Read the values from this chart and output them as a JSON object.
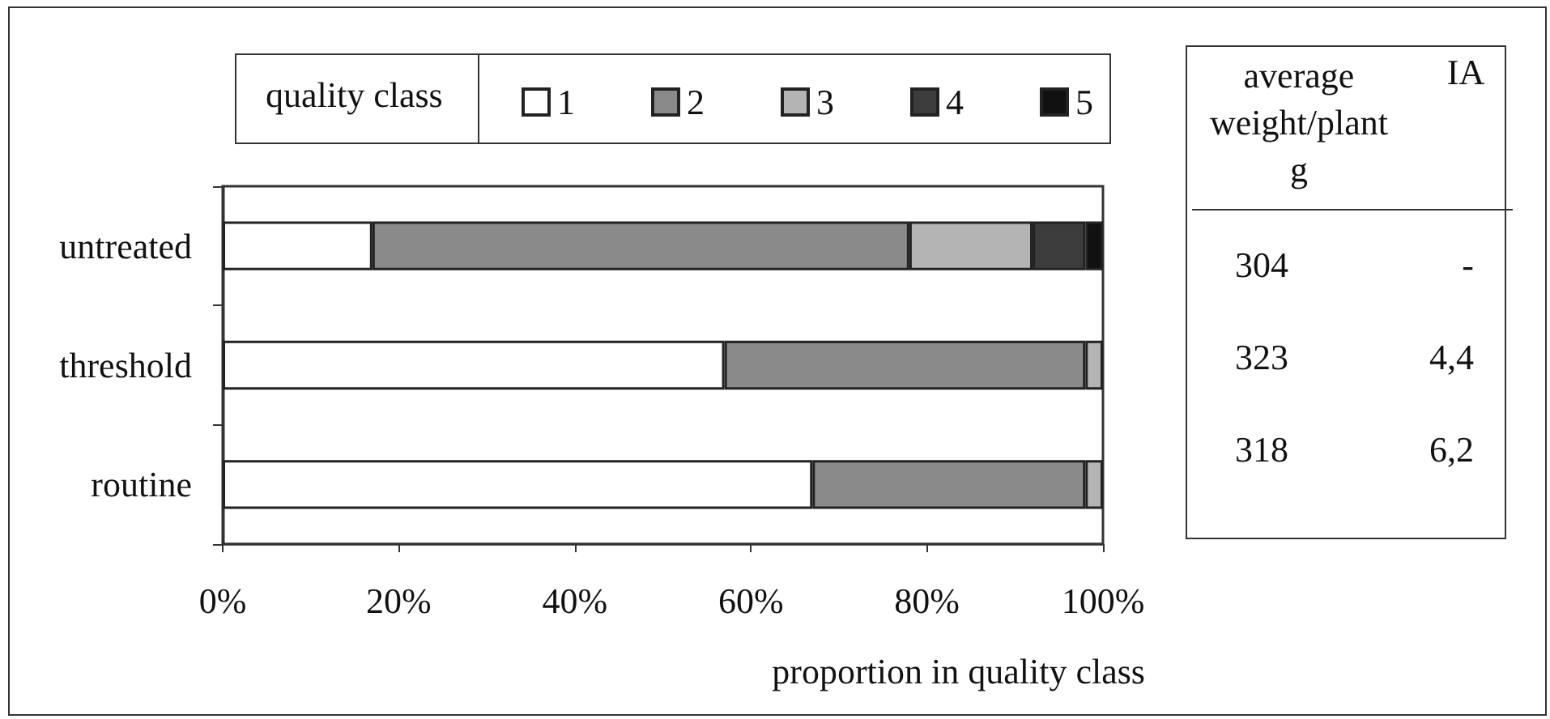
{
  "chart_data": {
    "type": "bar",
    "orientation": "horizontal",
    "stacked": true,
    "categories": [
      "untreated",
      "threshold",
      "routine"
    ],
    "series": [
      {
        "name": "1",
        "color": "#ffffff",
        "values": [
          17,
          57,
          67
        ]
      },
      {
        "name": "2",
        "color": "#8a8a8a",
        "values": [
          61,
          41,
          31
        ]
      },
      {
        "name": "3",
        "color": "#b4b4b4",
        "values": [
          14,
          2,
          2
        ]
      },
      {
        "name": "4",
        "color": "#3c3c3c",
        "values": [
          6,
          null,
          null
        ]
      },
      {
        "name": "5",
        "color": "#111111",
        "values": [
          2,
          null,
          null
        ]
      }
    ],
    "xlim": [
      0,
      100
    ],
    "xticks": [
      {
        "value": 0,
        "label": "0%"
      },
      {
        "value": 20,
        "label": "20%"
      },
      {
        "value": 40,
        "label": "40%"
      },
      {
        "value": 60,
        "label": "60%"
      },
      {
        "value": 80,
        "label": "80%"
      },
      {
        "value": 100,
        "label": "100%"
      }
    ],
    "xlabel": "proportion in quality class",
    "legend_title": "quality class",
    "legend": "top",
    "grid": false,
    "annotations": [
      "average weight/plant g",
      "IA",
      "304",
      "-",
      "323",
      "4,4",
      "318",
      "6,2"
    ]
  }
}
